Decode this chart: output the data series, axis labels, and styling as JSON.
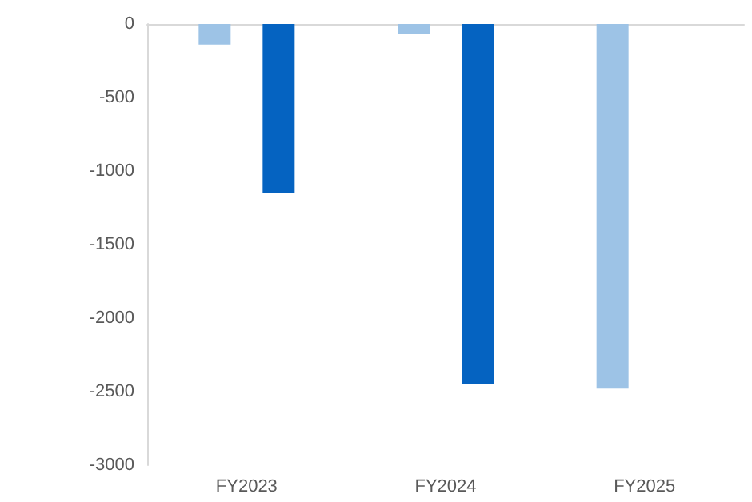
{
  "chart_data": {
    "type": "bar",
    "categories": [
      "FY2023",
      "FY2024",
      "FY2025"
    ],
    "series": [
      {
        "color": "#9dc3e6",
        "values": [
          -140,
          -70,
          -2480
        ]
      },
      {
        "color": "#0563c1",
        "values": [
          -1150,
          -2450,
          null
        ]
      }
    ],
    "ylim": [
      -3000,
      0
    ],
    "yticks": [
      -3000,
      -2500,
      -2000,
      -1500,
      -1000,
      -500,
      0
    ],
    "grid": false
  }
}
